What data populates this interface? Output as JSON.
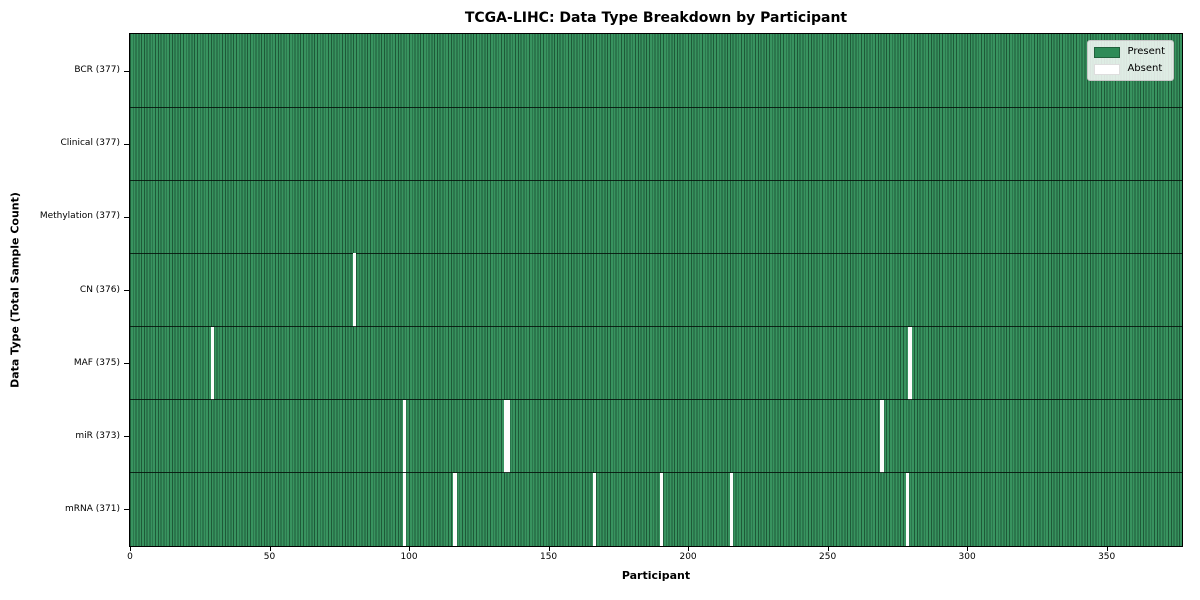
{
  "chart_data": {
    "type": "heatmap",
    "title": "TCGA-LIHC: Data Type Breakdown by Participant",
    "xlabel": "Participant",
    "ylabel": "Data Type (Total Sample Count)",
    "x_ticks": [
      0,
      50,
      100,
      150,
      200,
      250,
      300,
      350
    ],
    "x_range": [
      0,
      377
    ],
    "n_participants": 377,
    "grid": "row separators only",
    "legend_position": "upper right",
    "rows": [
      {
        "label": "BCR (377)",
        "data_type": "BCR",
        "present_count": 377,
        "absent_participants": []
      },
      {
        "label": "Clinical (377)",
        "data_type": "Clinical",
        "present_count": 377,
        "absent_participants": []
      },
      {
        "label": "Methylation (377)",
        "data_type": "Methylation",
        "present_count": 377,
        "absent_participants": []
      },
      {
        "label": "CN (376)",
        "data_type": "CN",
        "present_count": 376,
        "absent_participants": [
          80
        ]
      },
      {
        "label": "MAF (375)",
        "data_type": "MAF",
        "present_count": 375,
        "absent_participants": [
          29,
          279
        ]
      },
      {
        "label": "miR (373)",
        "data_type": "miR",
        "present_count": 373,
        "absent_participants": [
          98,
          134,
          135,
          269
        ]
      },
      {
        "label": "mRNA (371)",
        "data_type": "mRNA",
        "present_count": 371,
        "absent_participants": [
          98,
          116,
          166,
          190,
          215,
          278
        ]
      }
    ],
    "legend": [
      {
        "label": "Present",
        "color": "#2e8b57"
      },
      {
        "label": "Absent",
        "color": "#ffffff"
      }
    ],
    "colors": {
      "present": "#2e8b57",
      "present_stripe_light": "#38935f",
      "present_stripe_dark": "#1e5a38",
      "absent": "#ffffff",
      "plot_border": "#000000"
    }
  }
}
